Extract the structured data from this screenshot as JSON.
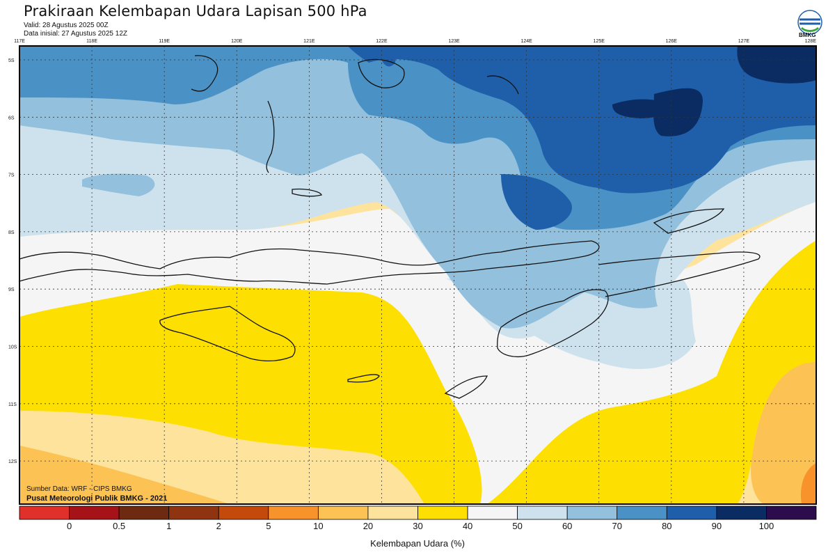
{
  "header": {
    "title": "Prakiraan Kelembapan Udara Lapisan 500 hPa",
    "valid": "Valid: 28 Agustus 2025 00Z",
    "initial": "Data inisial: 27 Agustus 2025 12Z"
  },
  "logo": {
    "text": "BMKG",
    "icon": "bmkg-logo-icon"
  },
  "map": {
    "lon_labels": [
      "117E",
      "118E",
      "119E",
      "120E",
      "121E",
      "122E",
      "123E",
      "124E",
      "125E",
      "126E",
      "127E",
      "128E"
    ],
    "lat_labels": [
      "5S",
      "6S",
      "7S",
      "8S",
      "9S",
      "10S",
      "11S",
      "12S"
    ],
    "grid": true
  },
  "footer": {
    "source": "Sumber Data: WRF - CIPS BMKG",
    "center": "Pusat Meteorologi Publik BMKG - 2021"
  },
  "colorbar": {
    "label": "Kelembapan Udara (%)",
    "ticks": [
      "0",
      "0.5",
      "1",
      "2",
      "5",
      "10",
      "20",
      "30",
      "40",
      "50",
      "60",
      "70",
      "80",
      "90",
      "100"
    ],
    "colors": [
      "#e0302c",
      "#a51218",
      "#6e2a10",
      "#8e3410",
      "#c44a0c",
      "#f8922a",
      "#fcc354",
      "#fde39c",
      "#fde002",
      "#f5f5f5",
      "#cee2ee",
      "#93c0dc",
      "#4a92c6",
      "#1f5ea8",
      "#0b2c62",
      "#2c0c4a"
    ]
  },
  "fields": {
    "dry_orange": "#fcc354",
    "light_orange": "#fde39c",
    "yellow": "#fde002",
    "white": "#f5f5f5",
    "pale_blue": "#cee2ee",
    "light_blue": "#93c0dc",
    "mid_blue": "#4a92c6",
    "deep_blue": "#1f5ea8",
    "navy": "#0b2c62"
  }
}
